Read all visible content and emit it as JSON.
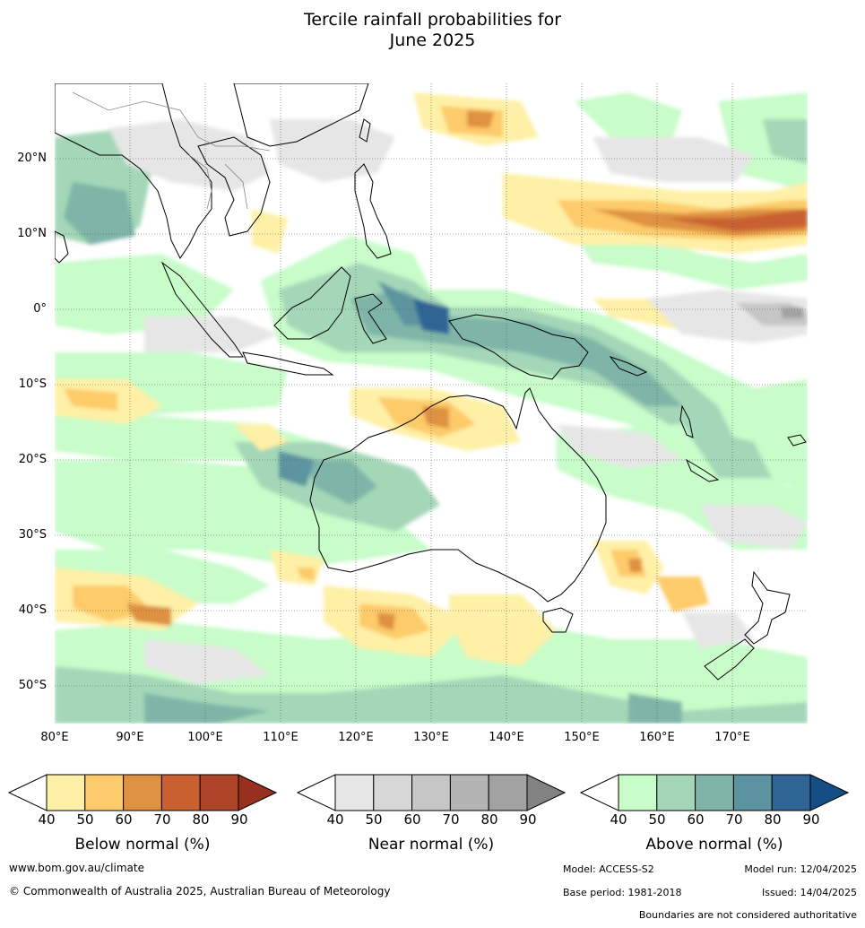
{
  "title": {
    "line1": "Tercile rainfall probabilities for",
    "line2": "June 2025"
  },
  "map": {
    "lat_labels": [
      "20°N",
      "10°N",
      "0°",
      "10°S",
      "20°S",
      "30°S",
      "40°S",
      "50°S"
    ],
    "lon_labels": [
      "80°E",
      "90°E",
      "100°E",
      "110°E",
      "120°E",
      "130°E",
      "140°E",
      "150°E",
      "160°E",
      "170°E"
    ],
    "lat_range": [
      -55,
      30
    ],
    "lon_range": [
      80,
      180
    ]
  },
  "colorbars": [
    {
      "title": "Below normal (%)",
      "ticks": [
        "40",
        "50",
        "60",
        "70",
        "80",
        "90"
      ],
      "colors": [
        "#fef0a6",
        "#fdcb6b",
        "#de9140",
        "#c96030",
        "#ad4428",
        "#97301e"
      ]
    },
    {
      "title": "Near normal (%)",
      "ticks": [
        "40",
        "50",
        "60",
        "70",
        "80",
        "90"
      ],
      "colors": [
        "#e6e6e6",
        "#d7d7d7",
        "#c6c6c6",
        "#b3b3b3",
        "#a2a2a2",
        "#828282"
      ]
    },
    {
      "title": "Above normal (%)",
      "ticks": [
        "40",
        "50",
        "60",
        "70",
        "80",
        "90"
      ],
      "colors": [
        "#c8fcc9",
        "#a4d7b8",
        "#7fb5a8",
        "#5b94a0",
        "#2e6595",
        "#154e86"
      ]
    }
  ],
  "footer": {
    "website": "www.bom.gov.au/climate",
    "copyright": "© Commonwealth of Australia 2025, Australian Bureau of Meteorology",
    "model": "Model: ACCESS-S2",
    "model_run": "Model run: 12/04/2025",
    "base_period": "Base period: 1981-2018",
    "issued": "Issued: 14/04/2025",
    "disclaimer": "Boundaries are not considered authoritative"
  }
}
